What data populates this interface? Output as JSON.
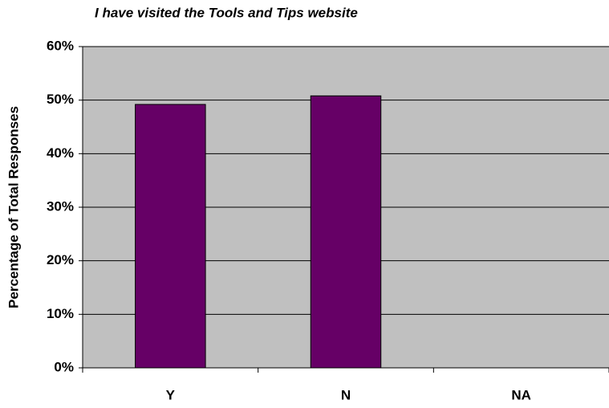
{
  "chart_data": {
    "type": "bar",
    "title": "I have visited the Tools and Tips website",
    "y_label": "Percentage of Total Responses",
    "categories": [
      "Y",
      "N",
      "NA"
    ],
    "values": [
      49.2,
      50.8,
      0
    ],
    "color": "#660066",
    "ylim": [
      0,
      60
    ],
    "yticks": [
      {
        "value": 0,
        "label": "0%"
      },
      {
        "value": 10,
        "label": "10%"
      },
      {
        "value": 20,
        "label": "20%"
      },
      {
        "value": 30,
        "label": "30%"
      },
      {
        "value": 40,
        "label": "40%"
      },
      {
        "value": 50,
        "label": "50%"
      },
      {
        "value": 60,
        "label": "60%"
      }
    ],
    "grid": true
  }
}
